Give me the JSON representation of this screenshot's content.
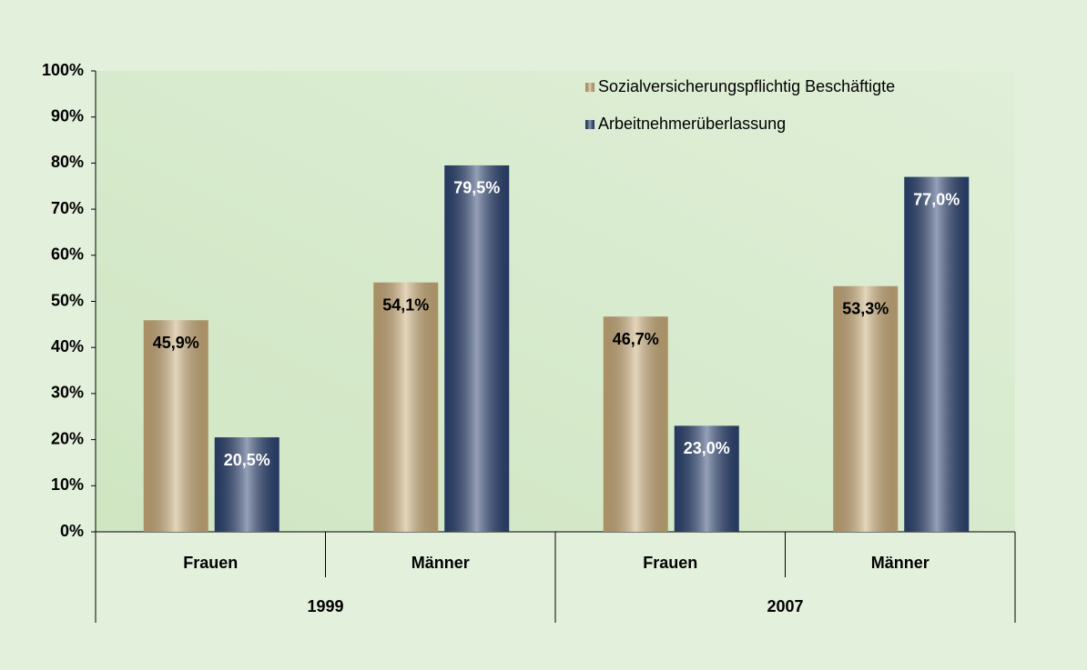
{
  "chart_data": {
    "type": "bar",
    "categories": [
      "Frauen",
      "Männer",
      "Frauen",
      "Männer"
    ],
    "groups": [
      "1999",
      "2007"
    ],
    "series": [
      {
        "name": "Sozialversicherungspflichtig Beschäftigte",
        "color": "#c9ab78",
        "label_color": "#000000",
        "values": [
          45.9,
          54.1,
          46.7,
          53.3
        ],
        "value_labels": [
          "45,9%",
          "54,1%",
          "46,7%",
          "53,3%"
        ]
      },
      {
        "name": "Arbeitnehmerüberlassung",
        "color": "#2b4270",
        "label_color": "#ffffff",
        "values": [
          20.5,
          79.5,
          23.0,
          77.0
        ],
        "value_labels": [
          "20,5%",
          "79,5%",
          "23,0%",
          "77,0%"
        ]
      }
    ],
    "ylim": [
      0,
      100
    ],
    "yticks": [
      {
        "value": 0,
        "label": "0%"
      },
      {
        "value": 10,
        "label": "10%"
      },
      {
        "value": 20,
        "label": "20%"
      },
      {
        "value": 30,
        "label": "30%"
      },
      {
        "value": 40,
        "label": "40%"
      },
      {
        "value": 50,
        "label": "50%"
      },
      {
        "value": 60,
        "label": "60%"
      },
      {
        "value": 70,
        "label": "70%"
      },
      {
        "value": 80,
        "label": "80%"
      },
      {
        "value": 90,
        "label": "90%"
      },
      {
        "value": 100,
        "label": "100%"
      }
    ],
    "grid": false,
    "legend": "top-right"
  }
}
